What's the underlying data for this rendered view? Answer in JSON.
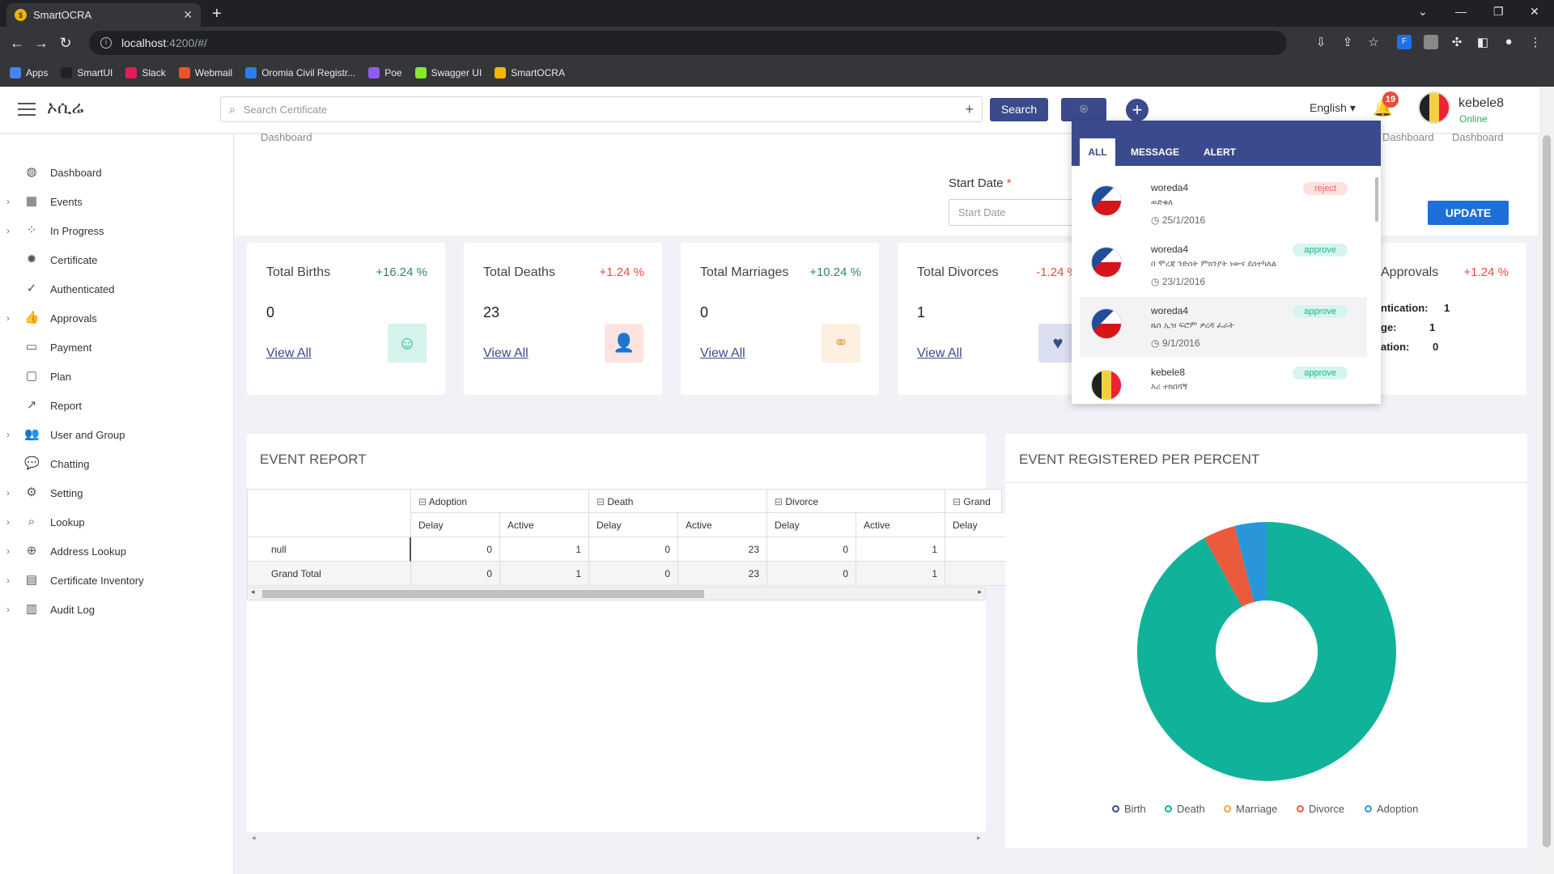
{
  "browser": {
    "tab_title": "SmartOCRA",
    "url_host": "localhost",
    "url_path": ":4200/#/",
    "bookmarks": [
      {
        "label": "Apps",
        "color": "#4285f4",
        "icon": "apps-grid-icon"
      },
      {
        "label": "SmartUI",
        "color": "#222222",
        "icon": "smartui-icon"
      },
      {
        "label": "Slack",
        "color": "#e01e5a",
        "icon": "slack-icon"
      },
      {
        "label": "Webmail",
        "color": "#e8542e",
        "icon": "webmail-icon"
      },
      {
        "label": "Oromia Civil Registr...",
        "color": "#2b7de9",
        "icon": "cloud-icon"
      },
      {
        "label": "Poe",
        "color": "#8c5cf5",
        "icon": "poe-icon"
      },
      {
        "label": "Swagger UI",
        "color": "#85ea2d",
        "icon": "swagger-icon"
      },
      {
        "label": "SmartOCRA",
        "color": "#f4b400",
        "icon": "smartocra-icon"
      }
    ]
  },
  "header": {
    "brand": "ኦሲሬ",
    "search_placeholder": "Search Certificate",
    "search_button": "Search",
    "language": "English",
    "notification_count": "19",
    "user_name": "kebele8",
    "user_status": "Online"
  },
  "sidebar": {
    "items": [
      {
        "label": "Dashboard",
        "icon": "dashboard-icon",
        "glyph": "◍",
        "expandable": false
      },
      {
        "label": "Events",
        "icon": "calendar-icon",
        "glyph": "▦",
        "expandable": true
      },
      {
        "label": "In Progress",
        "icon": "spinner-icon",
        "glyph": "⁘",
        "expandable": true
      },
      {
        "label": "Certificate",
        "icon": "certificate-icon",
        "glyph": "✹",
        "expandable": false
      },
      {
        "label": "Authenticated",
        "icon": "check-circle-icon",
        "glyph": "✓",
        "expandable": false
      },
      {
        "label": "Approvals",
        "icon": "thumbs-up-icon",
        "glyph": "👍",
        "expandable": true
      },
      {
        "label": "Payment",
        "icon": "credit-card-icon",
        "glyph": "▭",
        "expandable": false
      },
      {
        "label": "Plan",
        "icon": "calendar-plan-icon",
        "glyph": "▢",
        "expandable": false
      },
      {
        "label": "Report",
        "icon": "line-chart-icon",
        "glyph": "↗",
        "expandable": false
      },
      {
        "label": "User and Group",
        "icon": "users-icon",
        "glyph": "👥",
        "expandable": true
      },
      {
        "label": "Chatting",
        "icon": "chat-icon",
        "glyph": "💬",
        "expandable": false
      },
      {
        "label": "Setting",
        "icon": "gear-icon",
        "glyph": "⚙",
        "expandable": true
      },
      {
        "label": "Lookup",
        "icon": "search-icon",
        "glyph": "⌕",
        "expandable": true
      },
      {
        "label": "Address Lookup",
        "icon": "zoom-icon",
        "glyph": "⊕",
        "expandable": true
      },
      {
        "label": "Certificate Inventory",
        "icon": "archive-icon",
        "glyph": "▤",
        "expandable": true
      },
      {
        "label": "Audit Log",
        "icon": "log-icon",
        "glyph": "▥",
        "expandable": true
      }
    ]
  },
  "filters": {
    "breadcrumb_left": "Dashboard",
    "breadcrumb_right_1": "Dashboard",
    "breadcrumb_right_2": "Dashboard",
    "start_date_label": "Start Date",
    "required_mark": "*",
    "start_date_placeholder": "Start Date",
    "update_button": "UPDATE"
  },
  "stats": [
    {
      "title": "Total Births",
      "percent": "+16.24 %",
      "percent_color": "#2e8b57",
      "value": "0",
      "link": "View All",
      "icon": "smile-icon",
      "glyph": "☺",
      "icon_bg": "#d5f3ec",
      "icon_color": "#1bb394"
    },
    {
      "title": "Total Deaths",
      "percent": "+1.24 %",
      "percent_color": "#e74c3c",
      "value": "23",
      "link": "View All",
      "icon": "user-minus-icon",
      "glyph": "👤",
      "icon_bg": "#fde3e0",
      "icon_color": "#e8644e"
    },
    {
      "title": "Total Marriages",
      "percent": "+10.24 %",
      "percent_color": "#2e8b57",
      "value": "0",
      "link": "View All",
      "icon": "rings-icon",
      "glyph": "⚭",
      "icon_bg": "#fdf0e0",
      "icon_color": "#f1a355"
    },
    {
      "title": "Total Divorces",
      "percent": "-1.24 %",
      "percent_color": "#e74c3c",
      "value": "1",
      "link": "View All",
      "icon": "broken-heart-icon",
      "glyph": "♥",
      "icon_bg": "#dcdff0",
      "icon_color": "#3b4a8c"
    }
  ],
  "approvals_card": {
    "title": "Approvals",
    "percent": "+1.24 %",
    "rows": [
      {
        "label": "ntication:",
        "value": "1"
      },
      {
        "label": "ge:",
        "value": "1"
      },
      {
        "label": "ation:",
        "value": "0"
      }
    ]
  },
  "event_report": {
    "title": "EVENT REPORT",
    "groups": [
      "Adoption",
      "Death",
      "Divorce",
      "Grand"
    ],
    "subheaders": [
      "Delay",
      "Active",
      "Delay",
      "Active",
      "Delay",
      "Active",
      "Delay"
    ],
    "rows": [
      {
        "label": "null",
        "cells": [
          "0",
          "1",
          "0",
          "23",
          "0",
          "1",
          ""
        ]
      },
      {
        "label": "Grand Total",
        "cells": [
          "0",
          "1",
          "0",
          "23",
          "0",
          "1",
          ""
        ]
      }
    ]
  },
  "percent_chart": {
    "title": "EVENT REGISTERED PER PERCENT"
  },
  "chart_data": {
    "type": "pie",
    "title": "EVENT REGISTERED PER PERCENT",
    "categories": [
      "Birth",
      "Death",
      "Marriage",
      "Divorce",
      "Adoption"
    ],
    "values": [
      0,
      23,
      0,
      1,
      1
    ],
    "colors": [
      "#3b4a8c",
      "#10b39a",
      "#f1a340",
      "#ea5b3c",
      "#2996d9"
    ],
    "legend_position": "bottom"
  },
  "notifications": {
    "tabs": [
      "ALL",
      "MESSAGE",
      "ALERT"
    ],
    "items": [
      {
        "user": "woreda4",
        "message": "ወድቁለ",
        "date": "25/1/2016",
        "status": "reject",
        "flag": "cz"
      },
      {
        "user": "woreda4",
        "message": "በ ሞረጃ ንድሰት ምክንያት ነውና ደሰተካለል",
        "date": "23/1/2016",
        "status": "approve",
        "flag": "cz"
      },
      {
        "user": "woreda4",
        "message": "ዜሰ ኢዝ ፍሮም ዎረዳ ፈራት",
        "date": "9/1/2016",
        "status": "approve",
        "flag": "cz"
      },
      {
        "user": "kebele8",
        "message": "እሪ ተከበሻኝ",
        "date": "",
        "status": "approve",
        "flag": "be"
      }
    ]
  }
}
